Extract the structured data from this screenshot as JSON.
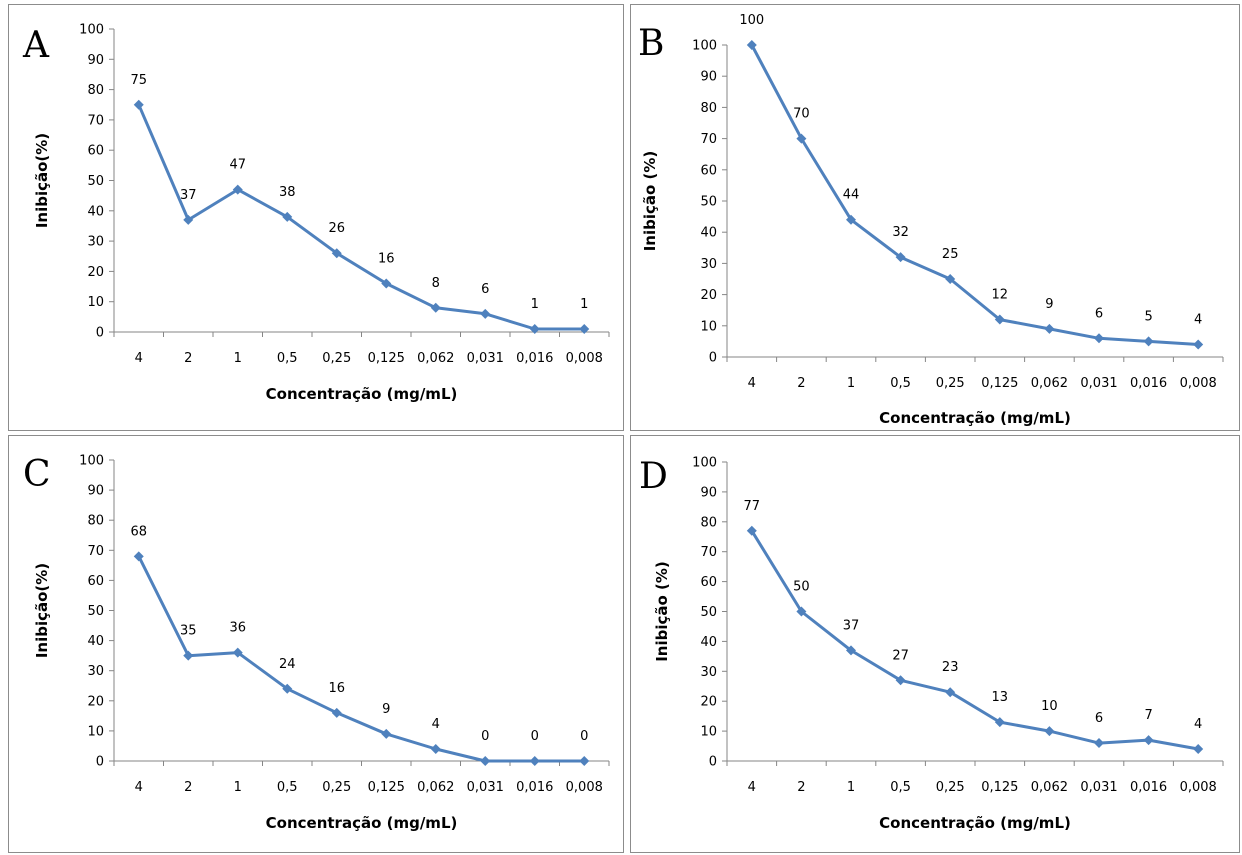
{
  "chart_data": [
    {
      "type": "line",
      "panel_label": "A",
      "categories": [
        "4",
        "2",
        "1",
        "0,5",
        "0,25",
        "0,125",
        "0,062",
        "0,031",
        "0,016",
        "0,008"
      ],
      "values": [
        75,
        37,
        47,
        38,
        26,
        16,
        8,
        6,
        1,
        1
      ],
      "data_labels": [
        "75",
        "37",
        "47",
        "38",
        "26",
        "16",
        "8",
        "6",
        "1",
        "1"
      ],
      "yticks": [
        "0",
        "10",
        "20",
        "30",
        "40",
        "50",
        "60",
        "70",
        "80",
        "90",
        "100"
      ],
      "xlabel": "Concentração (mg/mL)",
      "ylabel": "Inibição(%)",
      "ylim": [
        0,
        100
      ],
      "grid": false,
      "color": "#4f81bd"
    },
    {
      "type": "line",
      "panel_label": "B",
      "categories": [
        "4",
        "2",
        "1",
        "0,5",
        "0,25",
        "0,125",
        "0,062",
        "0,031",
        "0,016",
        "0,008"
      ],
      "values": [
        100,
        70,
        44,
        32,
        25,
        12,
        9,
        6,
        5,
        4
      ],
      "data_labels": [
        "100",
        "70",
        "44",
        "32",
        "25",
        "12",
        "9",
        "6",
        "5",
        "4"
      ],
      "yticks": [
        "0",
        "10",
        "20",
        "30",
        "40",
        "50",
        "60",
        "70",
        "80",
        "90",
        "100"
      ],
      "xlabel": "Concentração (mg/mL)",
      "ylabel": "Inibição (%)",
      "ylim": [
        0,
        100
      ],
      "grid": false,
      "color": "#4f81bd"
    },
    {
      "type": "line",
      "panel_label": "C",
      "categories": [
        "4",
        "2",
        "1",
        "0,5",
        "0,25",
        "0,125",
        "0,062",
        "0,031",
        "0,016",
        "0,008"
      ],
      "values": [
        68,
        35,
        36,
        24,
        16,
        9,
        4,
        0,
        0,
        0
      ],
      "data_labels": [
        "68",
        "35",
        "36",
        "24",
        "16",
        "9",
        "4",
        "0",
        "0",
        "0"
      ],
      "yticks": [
        "0",
        "10",
        "20",
        "30",
        "40",
        "50",
        "60",
        "70",
        "80",
        "90",
        "100"
      ],
      "xlabel": "Concentração (mg/mL)",
      "ylabel": "Inibição(%)",
      "ylim": [
        0,
        100
      ],
      "grid": false,
      "color": "#4f81bd"
    },
    {
      "type": "line",
      "panel_label": "D",
      "categories": [
        "4",
        "2",
        "1",
        "0,5",
        "0,25",
        "0,125",
        "0,062",
        "0,031",
        "0,016",
        "0,008"
      ],
      "values": [
        77,
        50,
        37,
        27,
        23,
        13,
        10,
        6,
        7,
        4
      ],
      "data_labels": [
        "77",
        "50",
        "37",
        "27",
        "23",
        "13",
        "10",
        "6",
        "7",
        "4"
      ],
      "yticks": [
        "0",
        "10",
        "20",
        "30",
        "40",
        "50",
        "60",
        "70",
        "80",
        "90",
        "100"
      ],
      "xlabel": "Concentração (mg/mL)",
      "ylabel": "Inibição (%)",
      "ylim": [
        0,
        100
      ],
      "grid": false,
      "color": "#4f81bd"
    }
  ]
}
